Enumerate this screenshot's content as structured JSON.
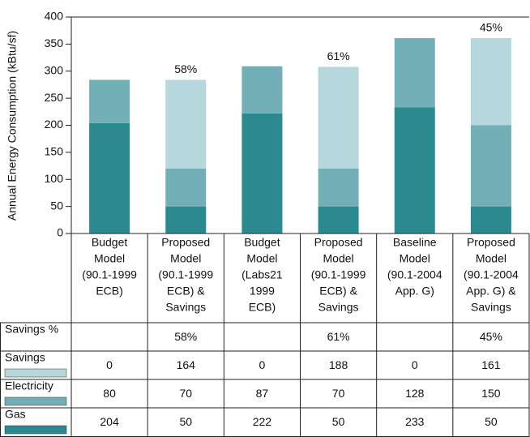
{
  "chart_data": {
    "type": "stacked_bar",
    "ylabel": "Annual Energy Consumption (kBtu/sf)",
    "categories": [
      [
        "Budget",
        "Model",
        "(90.1-1999",
        "ECB)"
      ],
      [
        "Proposed",
        "Model",
        "(90.1-1999",
        "ECB) &",
        "Savings"
      ],
      [
        "Budget",
        "Model",
        "(Labs21",
        "1999",
        "ECB)"
      ],
      [
        "Proposed",
        "Model",
        "(90.1-1999",
        "ECB) &",
        "Savings"
      ],
      [
        "Baseline",
        "Model",
        "(90.1-2004",
        "App. G)"
      ],
      [
        "Proposed",
        "Model",
        "(90.1-2004",
        "App. G) &",
        "Savings"
      ]
    ],
    "series": [
      {
        "name": "Gas",
        "color": "#2b8a8f",
        "values": [
          204,
          50,
          222,
          50,
          233,
          50
        ]
      },
      {
        "name": "Electricity",
        "color": "#72afb6",
        "values": [
          80,
          70,
          87,
          70,
          128,
          150
        ]
      },
      {
        "name": "Savings",
        "color": "#b6d8dc",
        "values": [
          0,
          164,
          0,
          188,
          0,
          161
        ]
      }
    ],
    "savings_pct": {
      "name": "Savings %",
      "values": [
        null,
        58,
        null,
        61,
        null,
        45
      ],
      "value_labels": [
        null,
        "58%",
        null,
        "61%",
        null,
        "45%"
      ]
    },
    "ylim": [
      0,
      400
    ],
    "yticks": [
      0,
      50,
      100,
      150,
      200,
      250,
      300,
      350,
      400
    ]
  }
}
